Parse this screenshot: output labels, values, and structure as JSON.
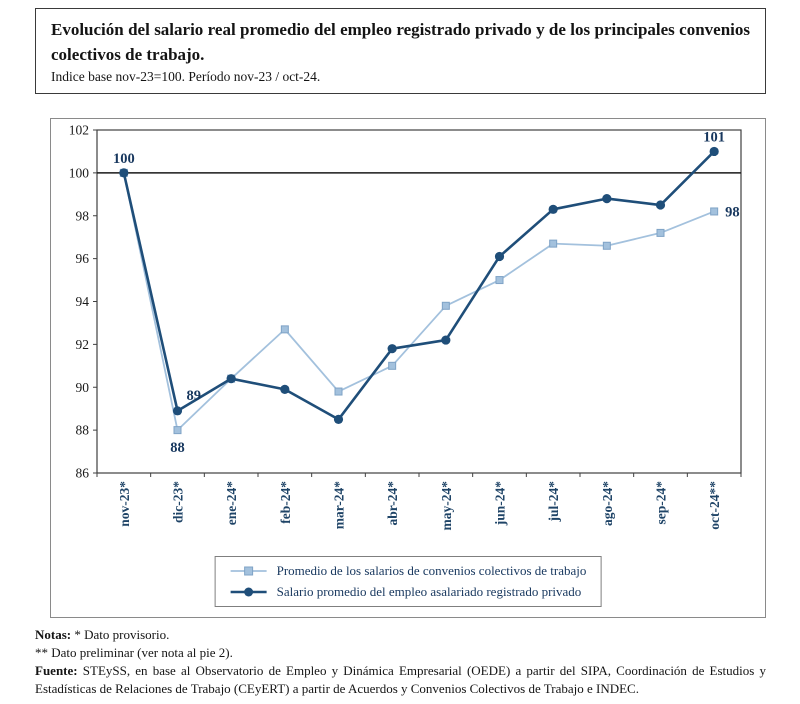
{
  "header": {
    "title": "Evolución del salario real promedio del empleo registrado privado y de los principales convenios colectivos de trabajo.",
    "subtitle": "Indice base nov-23=100. Período nov-23 / oct-24."
  },
  "chart_data": {
    "type": "line",
    "title": "",
    "xlabel": "",
    "ylabel": "",
    "categories": [
      "nov-23*",
      "dic-23*",
      "ene-24*",
      "feb-24*",
      "mar-24*",
      "abr-24*",
      "may-24*",
      "jun-24*",
      "jul-24*",
      "ago-24*",
      "sep-24*",
      "oct-24**"
    ],
    "series": [
      {
        "name": "Promedio de los salarios de convenios colectivos de trabajo",
        "color": "#A3C1DD",
        "marker": "square",
        "values": [
          100,
          88,
          90.4,
          92.7,
          89.8,
          91,
          93.8,
          95,
          96.7,
          96.6,
          97.2,
          98.2
        ]
      },
      {
        "name": "Salario promedio del empleo asalariado registrado privado",
        "color": "#1F4E79",
        "marker": "circle",
        "values": [
          100,
          88.9,
          90.4,
          89.9,
          88.5,
          91.8,
          92.2,
          96.1,
          98.3,
          98.8,
          98.5,
          101
        ]
      }
    ],
    "annotations": [
      {
        "series": 1,
        "index": 0,
        "label": "100",
        "position": "above"
      },
      {
        "series": 1,
        "index": 1,
        "label": "89",
        "position": "above-right"
      },
      {
        "series": 0,
        "index": 1,
        "label": "88",
        "position": "below"
      },
      {
        "series": 1,
        "index": 11,
        "label": "101",
        "position": "above"
      },
      {
        "series": 0,
        "index": 11,
        "label": "98",
        "position": "right"
      }
    ],
    "ylim": [
      86,
      102
    ],
    "ytick_step": 2,
    "baseline": 100,
    "grid": "none",
    "legend_position": "bottom",
    "colors": {
      "axis": "#404040",
      "baseline": "#1a1a1a",
      "label_dark": "#17375E",
      "xtick": "#1F4467",
      "square_stroke": "#7FA3C6",
      "legend_border": "#7f7f7f"
    }
  },
  "notes": {
    "notas_label": "Notas:",
    "notas_text": " * Dato provisorio.",
    "line2": "** Dato preliminar (ver nota al pie 2).",
    "fuente_label": "Fuente:",
    "fuente_text": " STEySS, en base al Observatorio de Empleo y Dinámica Empresarial (OEDE) a partir del SIPA, Coordinación de Estudios y Estadísticas de Relaciones de Trabajo (CEyERT) a partir de Acuerdos y Convenios Colectivos de Trabajo e INDEC."
  }
}
